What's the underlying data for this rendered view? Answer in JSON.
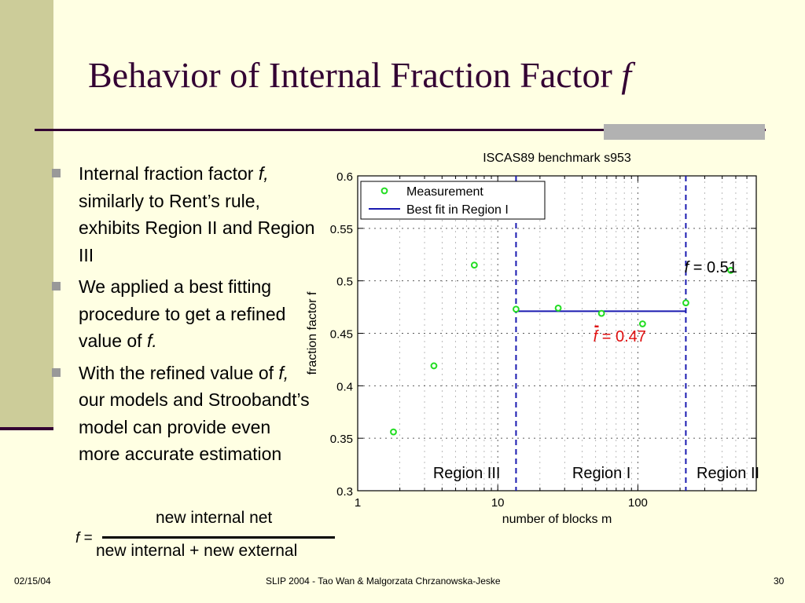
{
  "slide": {
    "title": "Behavior of Internal Fraction Factor",
    "title_variable": "f",
    "bullets": [
      {
        "before": "Internal fraction factor ",
        "var": "f,",
        "after": " similarly to Rent’s rule, exhibits Region II and Region III"
      },
      {
        "before": "We applied a best fitting procedure to get a refined value of ",
        "var": "f.",
        "after": ""
      },
      {
        "before": "With the refined value of ",
        "var": "f,",
        "after": " our models and Stroobandt’s model can provide even more accurate  estimation"
      }
    ],
    "formula": {
      "lhs": "f",
      "equals": "=",
      "numerator": "new internal net",
      "denominator": "new internal + new external"
    },
    "footer": {
      "date": "02/15/04",
      "center": "SLIP 2004  - Tao Wan & Malgorzata Chrzanowska-Jeske",
      "page": "30"
    }
  },
  "colors": {
    "background": "#FFFFE3",
    "title": "#330033",
    "side_band": "#CCCC99",
    "measurement": "#22DD22",
    "fit_line": "#1A1AB0",
    "refined_label": "#E01010"
  },
  "chart_data": {
    "type": "scatter",
    "title": "ISCAS89 benchmark s953",
    "xlabel": "number of blocks m",
    "ylabel": "fraction factor f",
    "x_scale": "log",
    "xlim": [
      1,
      700
    ],
    "ylim": [
      0.3,
      0.6
    ],
    "x_ticks": [
      1,
      10,
      100
    ],
    "x_tick_labels": [
      "1",
      "10",
      "100"
    ],
    "y_ticks": [
      0.3,
      0.35,
      0.4,
      0.45,
      0.5,
      0.55,
      0.6
    ],
    "y_tick_labels": [
      "0.3",
      "0.35",
      "0.4",
      "0.45",
      "0.5",
      "0.55",
      "0.6"
    ],
    "grid": true,
    "legend_position": "top-left",
    "series": [
      {
        "name": "Measurement",
        "kind": "points",
        "x": [
          1.8,
          3.5,
          6.8,
          13.5,
          27,
          55,
          108,
          220,
          460
        ],
        "y": [
          0.356,
          0.419,
          0.515,
          0.473,
          0.474,
          0.469,
          0.459,
          0.479,
          0.51
        ]
      },
      {
        "name": "Best fit in Region I",
        "kind": "line",
        "x": [
          13.5,
          220
        ],
        "y": [
          0.471,
          0.471
        ]
      }
    ],
    "region_boundaries": [
      13.5,
      220
    ],
    "regions": [
      {
        "label": "Region III",
        "x": 6
      },
      {
        "label": "Region I",
        "x": 55
      },
      {
        "label": "Region II",
        "x": 440
      }
    ],
    "annotations": [
      {
        "var": "f",
        "text": " = 0.51",
        "color": "#000000",
        "x": 215,
        "y": 0.508
      },
      {
        "var": "f",
        "bar": "-",
        "text": " = 0.47",
        "color": "#E01010",
        "x": 48,
        "y": 0.442
      }
    ]
  }
}
